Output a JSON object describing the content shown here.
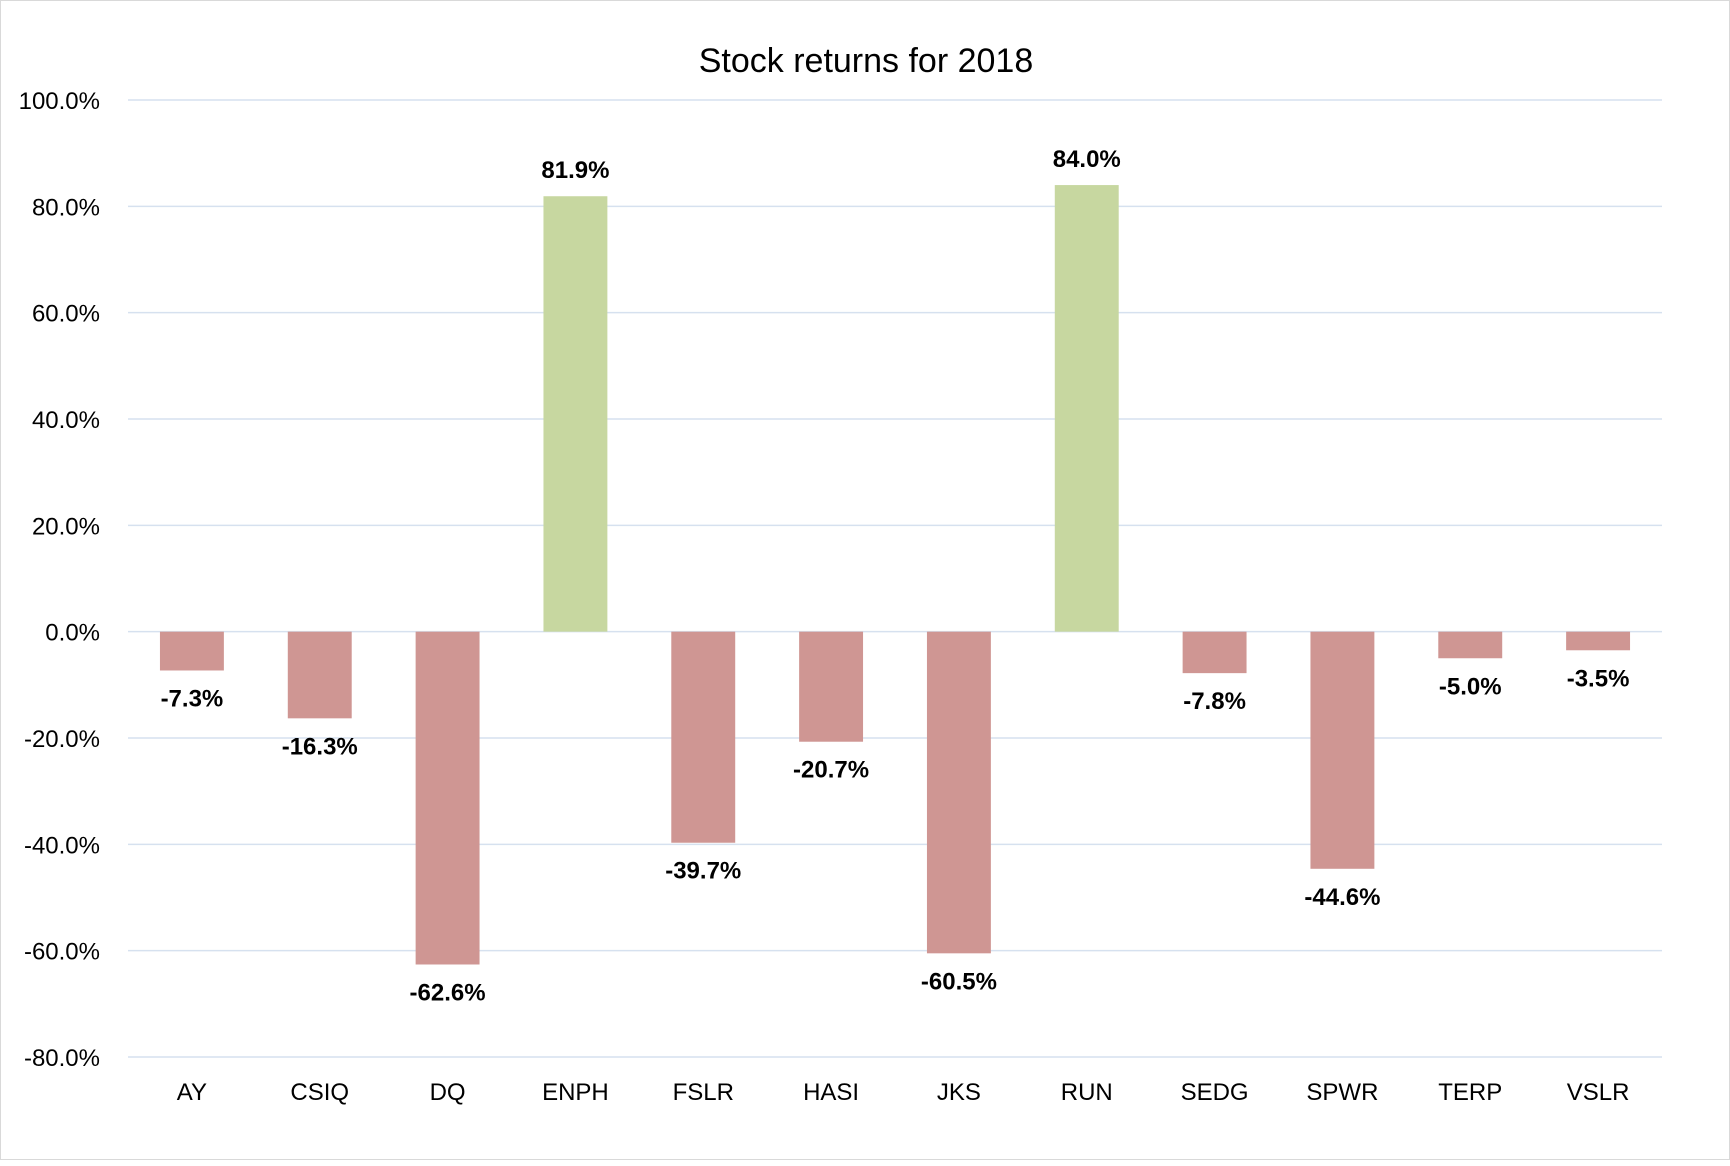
{
  "chart_data": {
    "type": "bar",
    "title": "Stock returns for 2018",
    "xlabel": "",
    "ylabel": "",
    "categories": [
      "AY",
      "CSIQ",
      "DQ",
      "ENPH",
      "FSLR",
      "HASI",
      "JKS",
      "RUN",
      "SEDG",
      "SPWR",
      "TERP",
      "VSLR"
    ],
    "values": [
      -7.3,
      -16.3,
      -62.6,
      81.9,
      -39.7,
      -20.7,
      -60.5,
      84.0,
      -7.8,
      -44.6,
      -5.0,
      -3.5
    ],
    "data_labels": [
      "-7.3%",
      "-16.3%",
      "-62.6%",
      "81.9%",
      "-39.7%",
      "-20.7%",
      "-60.5%",
      "84.0%",
      "-7.8%",
      "-44.6%",
      "-5.0%",
      "-3.5%"
    ],
    "ylim": [
      -80,
      100
    ],
    "yticks": [
      100,
      80,
      60,
      40,
      20,
      0,
      -20,
      -40,
      -60,
      -80
    ],
    "ytick_labels": [
      "100.0%",
      "80.0%",
      "60.0%",
      "40.0%",
      "20.0%",
      "0.0%",
      "-20.0%",
      "-40.0%",
      "-60.0%",
      "-80.0%"
    ],
    "grid": true,
    "legend": false,
    "colors": {
      "positive": "#c7d7a0",
      "negative": "#cf9693",
      "grid": "#d6e1ef",
      "text": "#000000"
    }
  }
}
